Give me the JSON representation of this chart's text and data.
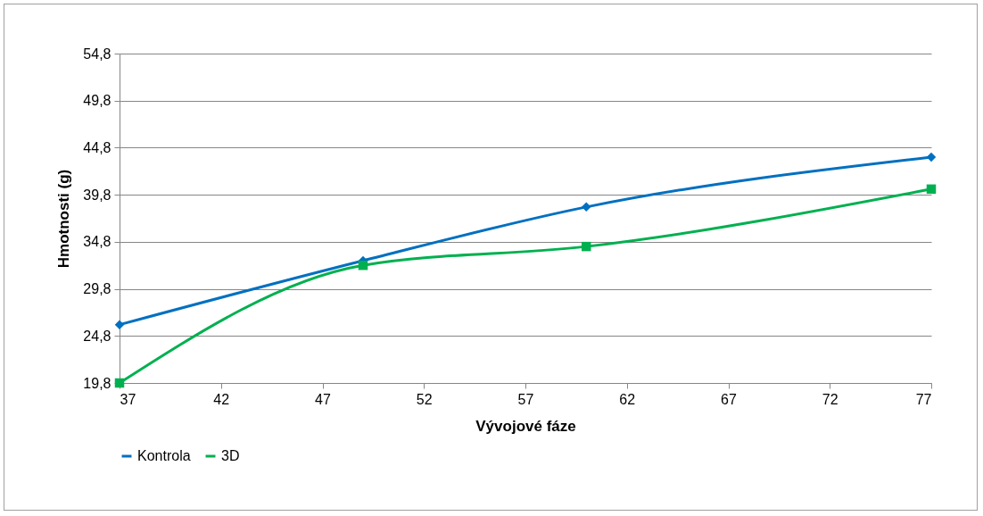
{
  "chart_data": {
    "type": "line",
    "xlabel": "Vývojové fáze",
    "ylabel": "Hmotnosti (g)",
    "x": [
      37,
      49,
      60,
      77
    ],
    "series": [
      {
        "name": "Kontrola",
        "color": "#0070c0",
        "marker": "diamond",
        "values": [
          26.0,
          32.8,
          38.5,
          43.8
        ]
      },
      {
        "name": "3D",
        "color": "#00b050",
        "marker": "square",
        "values": [
          19.8,
          32.3,
          34.3,
          40.4
        ]
      }
    ],
    "xlim": [
      37,
      77
    ],
    "xticks": [
      37,
      42,
      47,
      52,
      57,
      62,
      67,
      72,
      77
    ],
    "ylim": [
      19.8,
      54.8
    ],
    "yticks": [
      {
        "value": 19.8,
        "label": "19,8"
      },
      {
        "value": 24.8,
        "label": "24,8"
      },
      {
        "value": 29.8,
        "label": "29,8"
      },
      {
        "value": 34.8,
        "label": "34,8"
      },
      {
        "value": 39.8,
        "label": "39,8"
      },
      {
        "value": 44.8,
        "label": "44,8"
      },
      {
        "value": 49.8,
        "label": "49,8"
      },
      {
        "value": 54.8,
        "label": "54,8"
      }
    ],
    "grid": "y",
    "legend": "bottom",
    "line_style": "solid"
  }
}
